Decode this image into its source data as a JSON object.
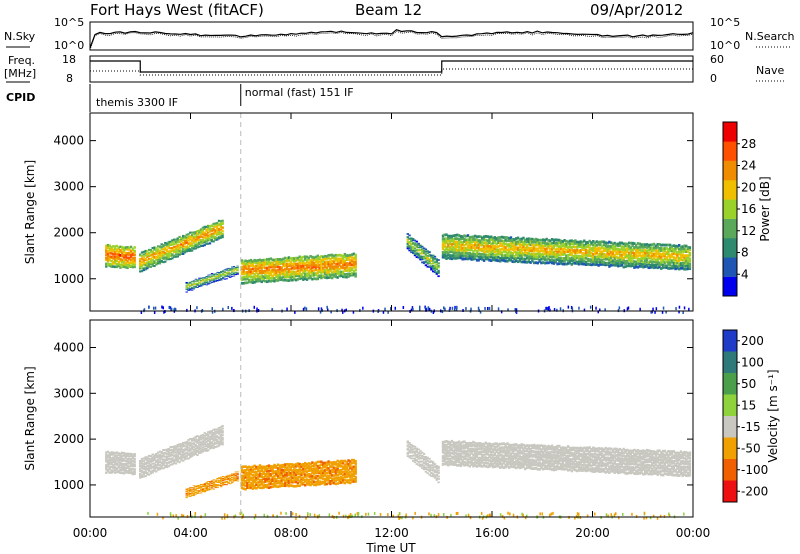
{
  "header": {
    "station": "Fort Hays West (fitACF)",
    "beam": "Beam 12",
    "date": "09/Apr/2012"
  },
  "top_panels": {
    "nsky_label": "N.Sky",
    "nsearch_label": "N.Search",
    "nsky_ticks": [
      "10^5",
      "10^0"
    ],
    "nsearch_ticks": [
      "10^5",
      "10^0"
    ],
    "freq_label_1": "Freq.",
    "freq_label_2": "[MHz]",
    "freq_ticks": [
      "18",
      "8"
    ],
    "nave_label": "Nave",
    "nave_ticks": [
      "60",
      "0"
    ],
    "cpid_label": "CPID",
    "cpid_modes": [
      {
        "name": "themis 3300 IF",
        "start_hour": 0,
        "end_hour": 6
      },
      {
        "name": "normal (fast) 151 IF",
        "start_hour": 6,
        "end_hour": 24
      }
    ]
  },
  "x_axis": {
    "label": "Time UT",
    "ticks": [
      "00:00",
      "04:00",
      "08:00",
      "12:00",
      "16:00",
      "20:00",
      "00:00"
    ]
  },
  "colors": {
    "power": [
      "#0000ee",
      "#1e56b4",
      "#2e8a6e",
      "#5aa85a",
      "#9ad22a",
      "#f0c000",
      "#f08c00",
      "#ff5000",
      "#ee0000"
    ],
    "velocity": [
      "#1e3cc8",
      "#2e7a7a",
      "#4aa04a",
      "#8ed23c",
      "#c8c8c0",
      "#f0a000",
      "#f06000",
      "#ee1010"
    ]
  },
  "chart_data": [
    {
      "type": "heatmap",
      "panel": "power",
      "xlabel": "Time UT",
      "ylabel": "Slant Range [km]",
      "xlim": [
        0,
        24
      ],
      "ylim": [
        300,
        4600
      ],
      "yticks": [
        1000,
        2000,
        3000,
        4000
      ],
      "colorbar_label": "Power [dB]",
      "colorbar_ticks": [
        4,
        8,
        12,
        16,
        20,
        24,
        28
      ],
      "colorbar_range": [
        0,
        32
      ],
      "scatter_regions": [
        {
          "t0": 0.6,
          "t1": 1.8,
          "center": [
            1500,
            1450
          ],
          "width": 480,
          "value": 20
        },
        {
          "t0": 1.95,
          "t1": 5.3,
          "center": [
            1350,
            2100
          ],
          "width": 420,
          "value": 16
        },
        {
          "t0": 3.8,
          "t1": 5.9,
          "center": [
            820,
            1200
          ],
          "width": 200,
          "value": 10
        },
        {
          "t0": 6.0,
          "t1": 10.6,
          "center": [
            1150,
            1300
          ],
          "width": 520,
          "value": 18
        },
        {
          "t0": 12.6,
          "t1": 13.9,
          "center": [
            1800,
            1200
          ],
          "width": 360,
          "value": 10
        },
        {
          "t0": 14.0,
          "t1": 23.9,
          "center": [
            1700,
            1450
          ],
          "width": 550,
          "value": 14
        }
      ],
      "ground_scatter_band": {
        "t0": 2.0,
        "t1": 23.9,
        "range": [
          300,
          420
        ]
      }
    },
    {
      "type": "heatmap",
      "panel": "velocity",
      "xlabel": "Time UT",
      "ylabel": "Slant Range [km]",
      "xlim": [
        0,
        24
      ],
      "ylim": [
        300,
        4600
      ],
      "yticks": [
        1000,
        2000,
        3000,
        4000
      ],
      "colorbar_label": "Velocity [m s⁻¹]",
      "colorbar_ticks": [
        200,
        100,
        50,
        15,
        -15,
        -50,
        -100,
        -200
      ],
      "scatter_regions": [
        {
          "t0": 0.6,
          "t1": 1.8,
          "center": [
            1500,
            1450
          ],
          "width": 480,
          "value": 0
        },
        {
          "t0": 1.95,
          "t1": 5.3,
          "center": [
            1350,
            2100
          ],
          "width": 420,
          "value": 0
        },
        {
          "t0": 3.8,
          "t1": 5.9,
          "center": [
            820,
            1200
          ],
          "width": 200,
          "value": -40
        },
        {
          "t0": 6.0,
          "t1": 10.6,
          "center": [
            1150,
            1300
          ],
          "width": 520,
          "value": -40
        },
        {
          "t0": 12.6,
          "t1": 13.9,
          "center": [
            1800,
            1200
          ],
          "width": 360,
          "value": 0
        },
        {
          "t0": 14.0,
          "t1": 23.9,
          "center": [
            1700,
            1450
          ],
          "width": 550,
          "value": 0
        }
      ],
      "ground_scatter_band": {
        "t0": 2.0,
        "t1": 23.9,
        "range": [
          300,
          420
        ]
      }
    }
  ]
}
